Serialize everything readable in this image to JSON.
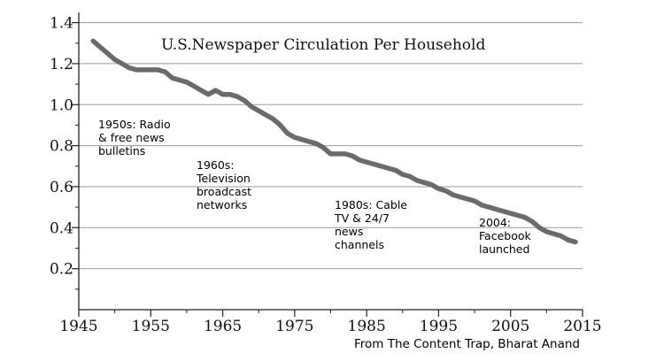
{
  "chart_data": {
    "type": "line",
    "title": "U.S.Newspaper Circulation Per Household",
    "source": "From The Content Trap, Bharat Anand",
    "xlim": [
      1945,
      2015
    ],
    "ylim": [
      0.0,
      1.45
    ],
    "grid": "horizontal",
    "x_ticks": [
      1945,
      1955,
      1965,
      1975,
      1985,
      1995,
      2005,
      2015
    ],
    "y_ticks": [
      0.2,
      0.4,
      0.6,
      0.8,
      1.0,
      1.2,
      1.4
    ],
    "x_tick_labels": [
      "1945",
      "1955",
      "1965",
      "1975",
      "1985",
      "1995",
      "2005",
      "2015"
    ],
    "y_tick_labels": [
      "0.2",
      "0.4",
      "0.6",
      "0.8",
      "1.0",
      "1.2",
      "1.4"
    ],
    "series": [
      {
        "color": "#6b6b6b",
        "x": [
          1947,
          1948,
          1949,
          1950,
          1951,
          1952,
          1953,
          1954,
          1955,
          1956,
          1957,
          1958,
          1959,
          1960,
          1961,
          1962,
          1963,
          1964,
          1965,
          1966,
          1967,
          1968,
          1969,
          1970,
          1971,
          1972,
          1973,
          1974,
          1975,
          1976,
          1977,
          1978,
          1979,
          1980,
          1981,
          1982,
          1983,
          1984,
          1985,
          1986,
          1987,
          1988,
          1989,
          1990,
          1991,
          1992,
          1993,
          1994,
          1995,
          1996,
          1997,
          1998,
          1999,
          2000,
          2001,
          2002,
          2003,
          2004,
          2005,
          2006,
          2007,
          2008,
          2009,
          2010,
          2011,
          2012,
          2013,
          2014
        ],
        "values": [
          1.31,
          1.28,
          1.25,
          1.22,
          1.2,
          1.18,
          1.17,
          1.17,
          1.17,
          1.17,
          1.16,
          1.13,
          1.12,
          1.11,
          1.09,
          1.07,
          1.05,
          1.07,
          1.05,
          1.05,
          1.04,
          1.02,
          0.99,
          0.97,
          0.95,
          0.93,
          0.9,
          0.86,
          0.84,
          0.83,
          0.82,
          0.81,
          0.79,
          0.76,
          0.76,
          0.76,
          0.75,
          0.73,
          0.72,
          0.71,
          0.7,
          0.69,
          0.68,
          0.66,
          0.65,
          0.63,
          0.62,
          0.61,
          0.59,
          0.58,
          0.56,
          0.55,
          0.54,
          0.53,
          0.51,
          0.5,
          0.49,
          0.48,
          0.47,
          0.46,
          0.45,
          0.43,
          0.4,
          0.38,
          0.37,
          0.36,
          0.34,
          0.33
        ]
      }
    ],
    "annotations": [
      {
        "lines": [
          "1950s: Radio",
          "& free news",
          "bulletins"
        ]
      },
      {
        "lines": [
          "1960s:",
          "Television",
          "broadcast",
          "networks"
        ]
      },
      {
        "lines": [
          "1980s: Cable",
          "TV & 24/7",
          "news",
          "channels"
        ]
      },
      {
        "lines": [
          "2004:",
          "Facebook",
          "launched"
        ]
      }
    ]
  }
}
